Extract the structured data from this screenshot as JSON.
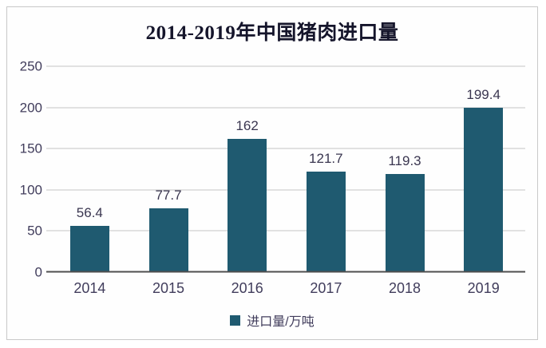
{
  "chart_data": {
    "type": "bar",
    "title": "2014-2019年中国猪肉进口量",
    "categories": [
      "2014",
      "2015",
      "2016",
      "2017",
      "2018",
      "2019"
    ],
    "values": [
      56.4,
      77.7,
      162,
      121.7,
      119.3,
      199.4
    ],
    "value_labels": [
      "56.4",
      "77.7",
      "162",
      "121.7",
      "119.3",
      "199.4"
    ],
    "xlabel": "",
    "ylabel": "",
    "ylim": [
      0,
      250
    ],
    "yticks": [
      0,
      50,
      100,
      150,
      200,
      250
    ],
    "grid": true,
    "legend": {
      "label": "进口量/万吨",
      "position": "bottom"
    },
    "colors": {
      "bar": "#1f5a70",
      "gridline": "#c4c4c4",
      "axis_line": "#4f4f4f",
      "tick_text": "#413d5c",
      "value_text": "#3a3650",
      "title_text": "#15152b",
      "frame_border": "#c9c9c9",
      "background": "#fefefe"
    }
  }
}
